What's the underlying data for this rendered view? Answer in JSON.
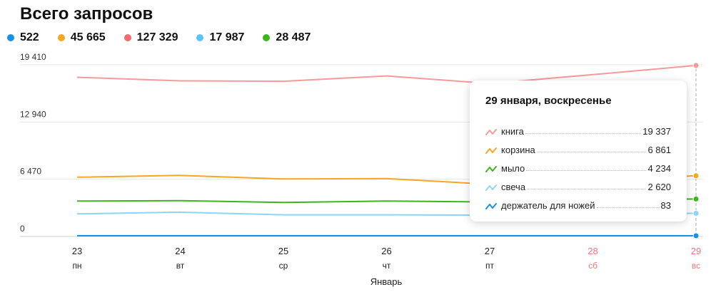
{
  "header": {
    "title": "Всего запросов"
  },
  "legend": [
    {
      "value": "522",
      "color": "#1890e6"
    },
    {
      "value": "45 665",
      "color": "#f5a623"
    },
    {
      "value": "127 329",
      "color": "#f06b6b"
    },
    {
      "value": "17 987",
      "color": "#5bc4f5"
    },
    {
      "value": "28 487",
      "color": "#3cb521"
    }
  ],
  "tooltip": {
    "title": "29 января, воскресенье",
    "rows": [
      {
        "label": "книга",
        "value": "19 337",
        "color": "#f59a9a"
      },
      {
        "label": "корзина",
        "value": "6 861",
        "color": "#f5a623"
      },
      {
        "label": "мыло",
        "value": "4 234",
        "color": "#3cb521"
      },
      {
        "label": "свеча",
        "value": "2 620",
        "color": "#8fd3f7"
      },
      {
        "label": "держатель для ножей",
        "value": "83",
        "color": "#1890e6"
      }
    ]
  },
  "chart_data": {
    "type": "line",
    "x": [
      "23",
      "24",
      "25",
      "26",
      "27",
      "28",
      "29"
    ],
    "x_sublabels": [
      "пн",
      "вт",
      "ср",
      "чт",
      "пт",
      "сб",
      "вс"
    ],
    "weekend_indices": [
      5,
      6
    ],
    "weekend_color": "#f07878",
    "xlabel": "Январь",
    "y_ticks": [
      "0",
      "6 470",
      "12 940",
      "19 410"
    ],
    "y_tick_values": [
      0,
      6470,
      12940,
      19410
    ],
    "ylim": [
      0,
      19410
    ],
    "series": [
      {
        "color": "#f59a9a",
        "values": [
          18000,
          17600,
          17550,
          18150,
          17300,
          18300,
          19337
        ]
      },
      {
        "color": "#f5a623",
        "values": [
          6700,
          6900,
          6500,
          6550,
          5900,
          6300,
          6861
        ]
      },
      {
        "color": "#3cb521",
        "values": [
          4000,
          4050,
          3850,
          4000,
          3900,
          4100,
          4234
        ]
      },
      {
        "color": "#8fd3f7",
        "values": [
          2550,
          2750,
          2450,
          2450,
          2400,
          2500,
          2620
        ]
      },
      {
        "color": "#1890e6",
        "values": [
          80,
          82,
          79,
          81,
          80,
          82,
          83
        ]
      }
    ],
    "highlight_index": 6
  }
}
